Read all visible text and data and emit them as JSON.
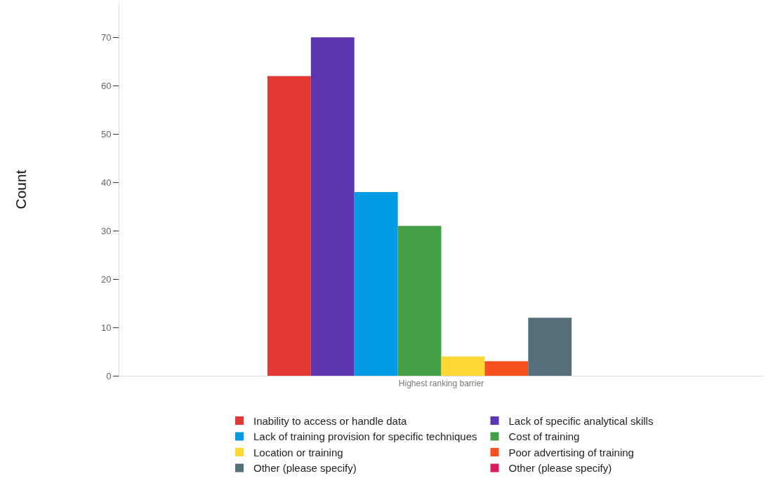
{
  "chart_data": {
    "type": "bar",
    "ylabel": "Count",
    "categories": [
      "Highest ranking barrier"
    ],
    "series": [
      {
        "name": "Inability to access or handle data",
        "color": "#e33935",
        "values": [
          62
        ]
      },
      {
        "name": "Lack of specific analytical skills",
        "color": "#5e35b1",
        "values": [
          70
        ]
      },
      {
        "name": "Lack of training provision for specific techniques",
        "color": "#039be5",
        "values": [
          38
        ]
      },
      {
        "name": "Cost of training",
        "color": "#43a047",
        "values": [
          31
        ]
      },
      {
        "name": "Location or training",
        "color": "#fdd835",
        "values": [
          4
        ]
      },
      {
        "name": "Poor advertising of training",
        "color": "#f4511e",
        "values": [
          3
        ]
      },
      {
        "name": "Other (please specify)",
        "color": "#546e7a",
        "values": [
          12
        ]
      },
      {
        "name": "Other (please specify)",
        "color": "#d81b60",
        "values": [
          0
        ]
      }
    ],
    "ylim": [
      0,
      77
    ],
    "yticks": [
      0,
      10,
      20,
      30,
      40,
      50,
      60,
      70
    ],
    "legend": "bottom"
  }
}
